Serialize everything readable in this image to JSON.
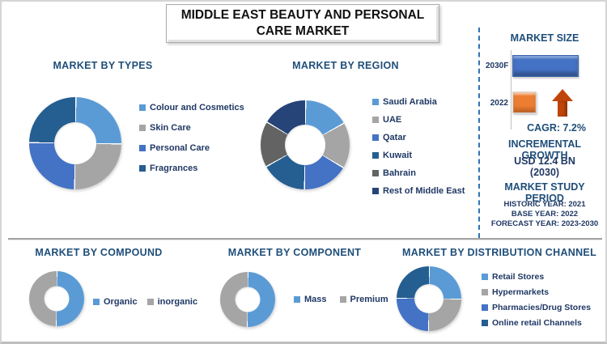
{
  "title": {
    "text": "MIDDLE EAST BEAUTY AND PERSONAL CARE MARKET"
  },
  "palette": {
    "light_blue": "#5B9BD5",
    "gray": "#A5A5A5",
    "blue": "#4472C4",
    "dark_blue": "#255E91",
    "dark_gray": "#636363",
    "navy": "#264478",
    "orange": "#ED7D31",
    "header_blue": "#1F4E79",
    "text_navy": "#1F3864",
    "arrow_red": "#C0450B"
  },
  "sections": {
    "types": {
      "title": "MARKET BY TYPES",
      "legend": [
        {
          "label": "Colour and Cosmetics",
          "color": "#5B9BD5"
        },
        {
          "label": "Skin Care",
          "color": "#A5A5A5"
        },
        {
          "label": "Personal Care",
          "color": "#4472C4"
        },
        {
          "label": "Fragrances",
          "color": "#255E91"
        }
      ]
    },
    "region": {
      "title": "MARKET BY REGION",
      "legend": [
        {
          "label": "Saudi Arabia",
          "color": "#5B9BD5"
        },
        {
          "label": "UAE",
          "color": "#A5A5A5"
        },
        {
          "label": "Qatar",
          "color": "#4472C4"
        },
        {
          "label": "Kuwait",
          "color": "#255E91"
        },
        {
          "label": "Bahrain",
          "color": "#636363"
        },
        {
          "label": "Rest of Middle East",
          "color": "#264478"
        }
      ]
    },
    "market_size": {
      "title": "MARKET SIZE",
      "bars": [
        {
          "label": "2030F",
          "color": "#4472C4"
        },
        {
          "label": "2022",
          "color": "#ED7D31"
        }
      ],
      "cagr": "CAGR:  7.2%",
      "incremental_title": "INCREMENTAL GROWTH",
      "incremental_value": "USD 12.4 BN",
      "incremental_year": "(2030)",
      "study_title": "MARKET STUDY PERIOD",
      "historic": "HISTORIC YEAR: 2021",
      "base": "BASE YEAR: 2022",
      "forecast": "FORECAST YEAR: 2023-2030"
    },
    "compound": {
      "title": "MARKET BY COMPOUND",
      "legend": [
        {
          "label": "Organic",
          "color": "#5B9BD5"
        },
        {
          "label": "inorganic",
          "color": "#A5A5A5"
        }
      ]
    },
    "component": {
      "title": "MARKET BY COMPONENT",
      "legend": [
        {
          "label": "Mass",
          "color": "#5B9BD5"
        },
        {
          "label": "Premium",
          "color": "#A5A5A5"
        }
      ]
    },
    "distribution": {
      "title": "MARKET BY DISTRIBUTION CHANNEL",
      "legend": [
        {
          "label": "Retail Stores",
          "color": "#5B9BD5"
        },
        {
          "label": "Hypermarkets",
          "color": "#A5A5A5"
        },
        {
          "label": "Pharmacies/Drug Stores",
          "color": "#4472C4"
        },
        {
          "label": "Online retail Channels",
          "color": "#255E91"
        }
      ]
    }
  },
  "chart_data": [
    {
      "id": "types_donut",
      "type": "pie",
      "donut": true,
      "title": "MARKET BY TYPES",
      "labels": [
        "Colour and Cosmetics",
        "Skin Care",
        "Personal Care",
        "Fragrances"
      ],
      "values": [
        25,
        25,
        25,
        25
      ],
      "colors": [
        "#5B9BD5",
        "#A5A5A5",
        "#4472C4",
        "#255E91"
      ],
      "note": "equal quadrants; percentages estimated, not labeled on chart"
    },
    {
      "id": "region_donut",
      "type": "pie",
      "donut": true,
      "title": "MARKET BY REGION",
      "labels": [
        "Saudi Arabia",
        "UAE",
        "Qatar",
        "Kuwait",
        "Bahrain",
        "Rest of Middle East"
      ],
      "values": [
        16.7,
        16.7,
        16.7,
        16.7,
        16.7,
        16.7
      ],
      "colors": [
        "#5B9BD5",
        "#A5A5A5",
        "#4472C4",
        "#255E91",
        "#636363",
        "#264478"
      ],
      "note": "six equal slices; percentages estimated, not labeled on chart"
    },
    {
      "id": "market_size_bar",
      "type": "bar",
      "orientation": "horizontal",
      "title": "MARKET SIZE",
      "categories": [
        "2030F",
        "2022"
      ],
      "values_relative": [
        1.0,
        0.37
      ],
      "colors": [
        "#4472C4",
        "#ED7D31"
      ],
      "annotations": {
        "cagr_pct": 7.2,
        "incremental_growth": "USD 12.4 BN (2030)"
      },
      "note": "no numeric axis shown; bar lengths estimated from pixels"
    },
    {
      "id": "compound_donut",
      "type": "pie",
      "donut": true,
      "title": "MARKET BY COMPOUND",
      "labels": [
        "Organic",
        "inorganic"
      ],
      "values": [
        50,
        50
      ],
      "colors": [
        "#5B9BD5",
        "#A5A5A5"
      ],
      "note": "two equal halves; percentages estimated"
    },
    {
      "id": "component_donut",
      "type": "pie",
      "donut": true,
      "title": "MARKET BY COMPONENT",
      "labels": [
        "Mass",
        "Premium"
      ],
      "values": [
        50,
        50
      ],
      "colors": [
        "#5B9BD5",
        "#A5A5A5"
      ],
      "note": "two equal halves; percentages estimated"
    },
    {
      "id": "distribution_donut",
      "type": "pie",
      "donut": true,
      "title": "MARKET BY DISTRIBUTION CHANNEL",
      "labels": [
        "Retail Stores",
        "Hypermarkets",
        "Pharmacies/Drug Stores",
        "Online retail Channels"
      ],
      "values": [
        25,
        25,
        25,
        25
      ],
      "colors": [
        "#5B9BD5",
        "#A5A5A5",
        "#4472C4",
        "#255E91"
      ],
      "note": "equal quadrants; percentages estimated"
    }
  ]
}
